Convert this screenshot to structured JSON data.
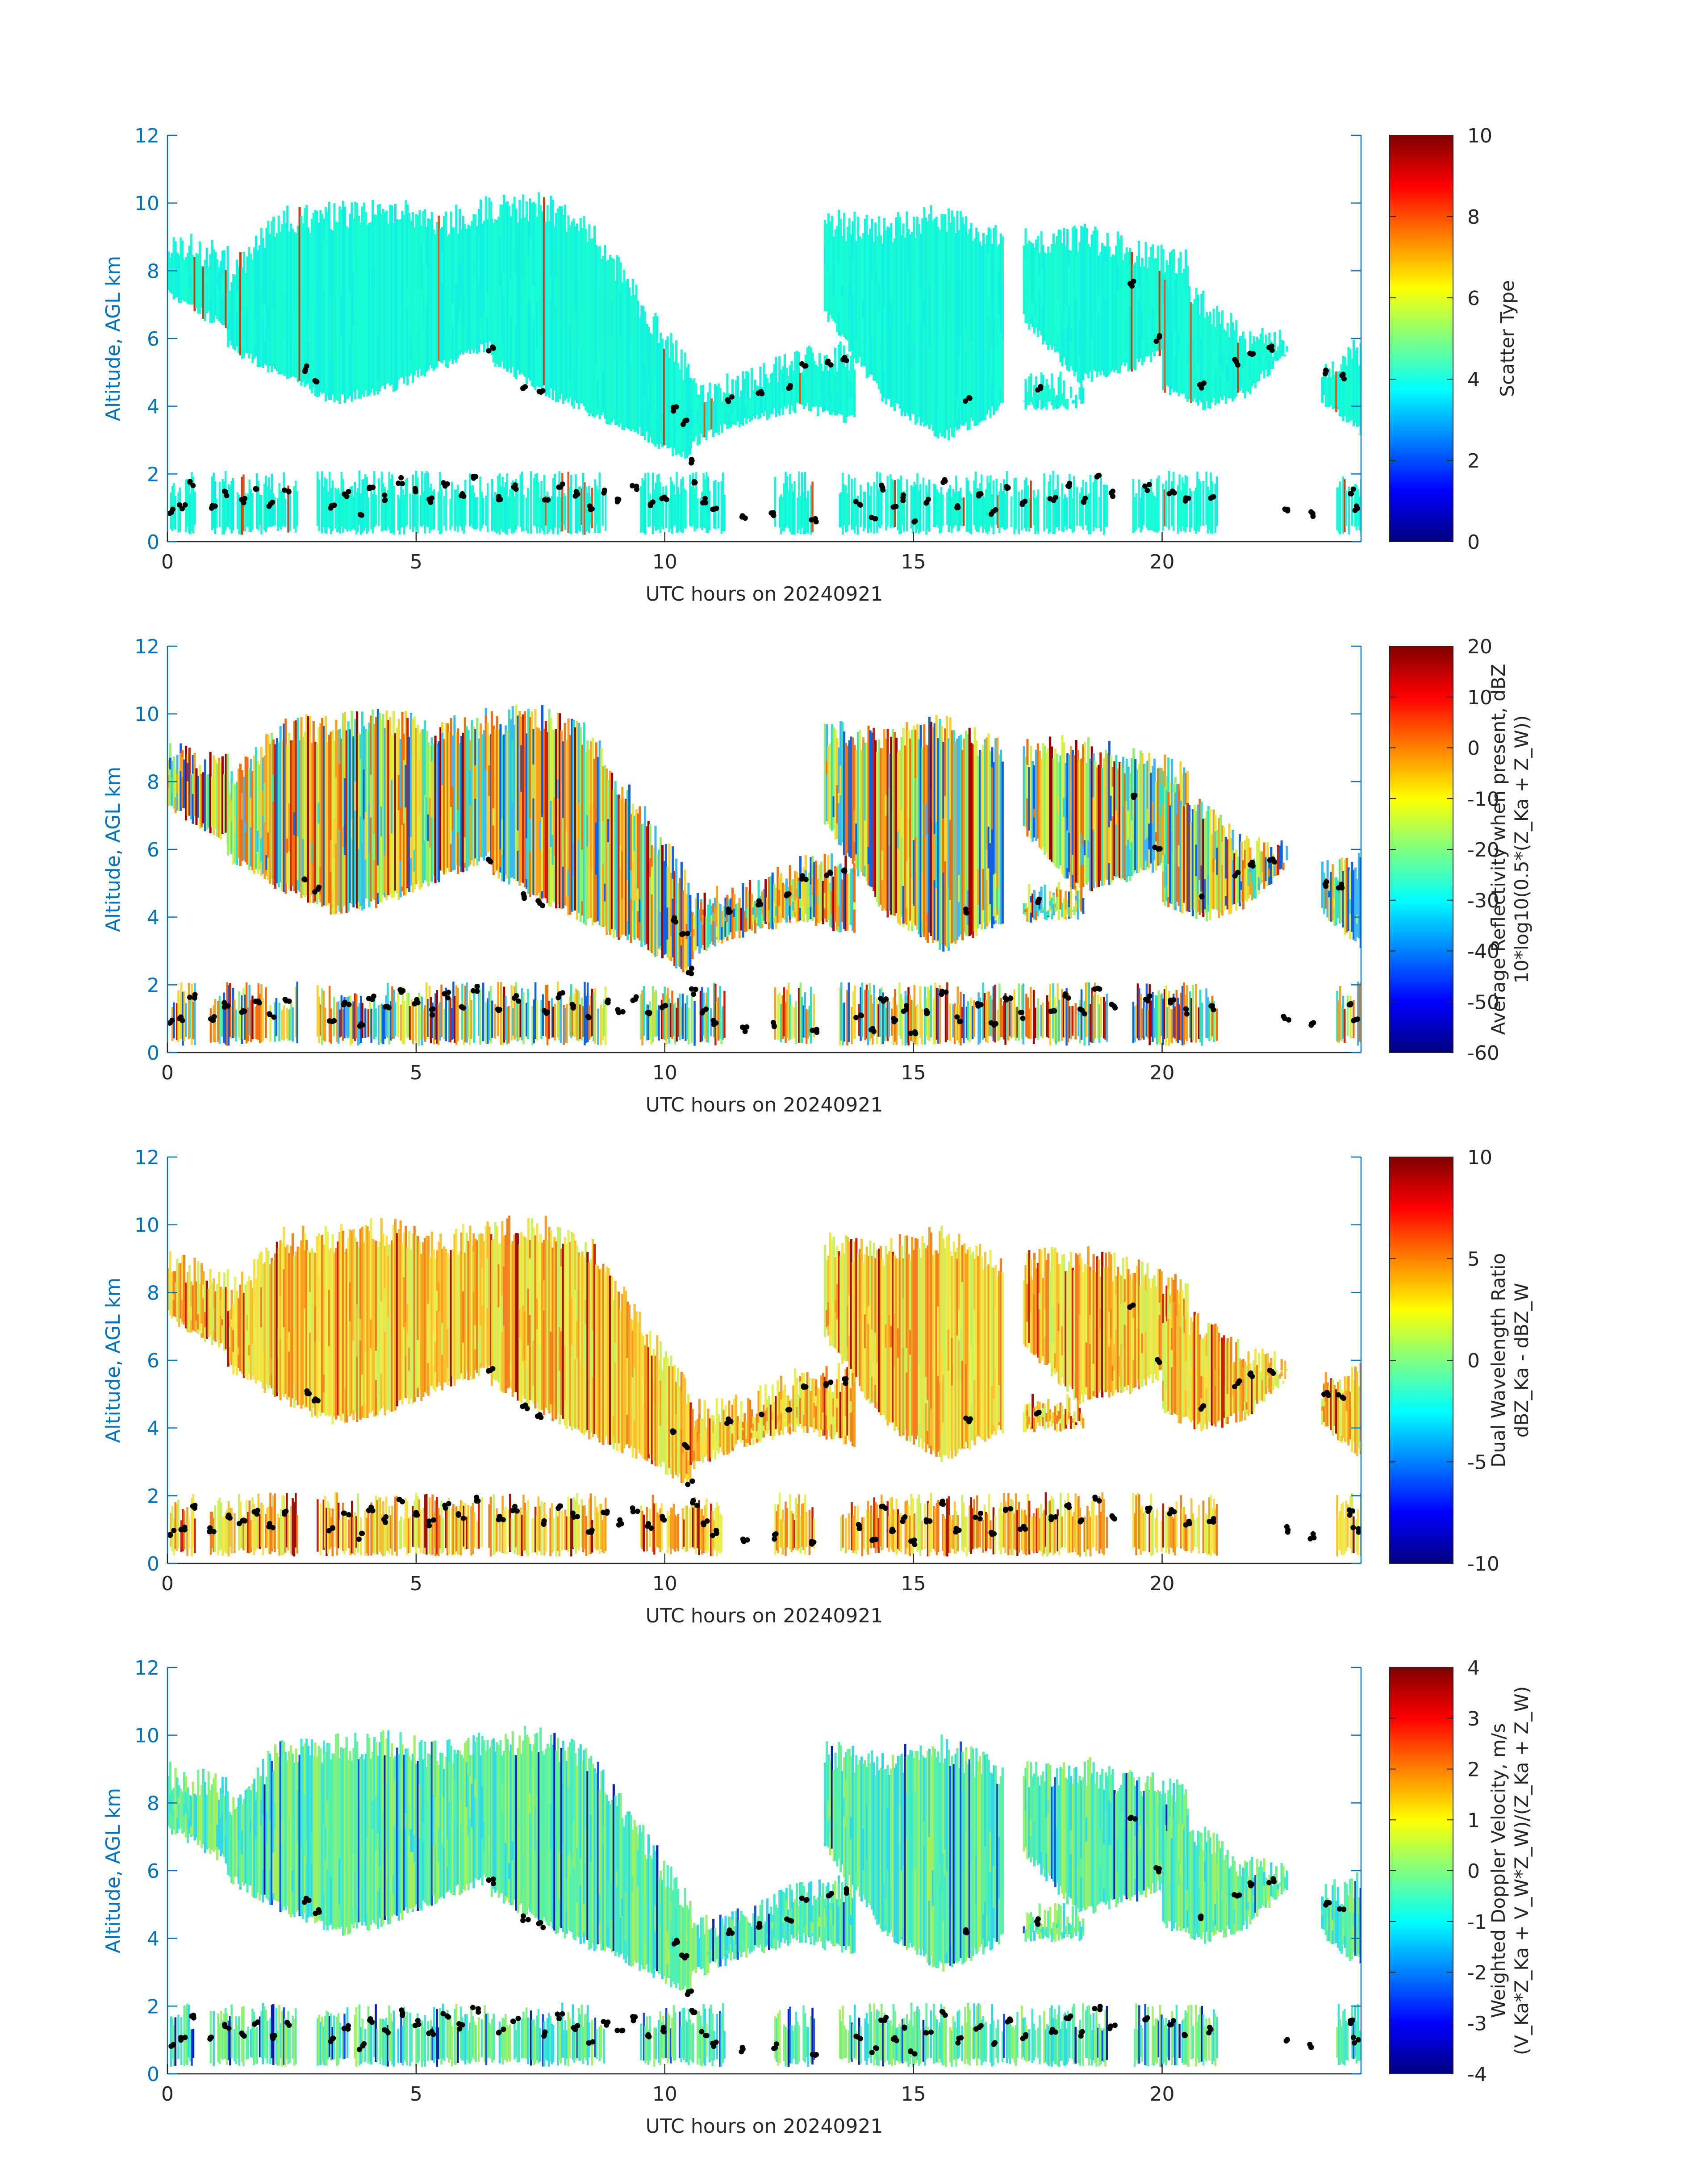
{
  "figure": {
    "xlabel": "UTC hours on 20240921",
    "ylabel": "Altitude, AGL km",
    "xticks": [
      "0",
      "5",
      "10",
      "15",
      "20"
    ],
    "yticks": [
      "0",
      "2",
      "4",
      "6",
      "8",
      "10",
      "12"
    ]
  },
  "chart_data": [
    {
      "type": "heatmap",
      "title": "",
      "xlabel": "UTC hours on 20240921",
      "ylabel": "Altitude, AGL km",
      "xlim": [
        0,
        24
      ],
      "ylim": [
        0,
        12
      ],
      "colormap": "jet",
      "colorbar": {
        "label": [
          "Scatter Type"
        ],
        "lim": [
          0,
          10
        ],
        "ticks": [
          "0",
          "2",
          "4",
          "6",
          "8",
          "10"
        ]
      },
      "dominant_value": 4,
      "palette": [
        "#16fdd8",
        "#19f8d0",
        "#12f0e0"
      ],
      "accent_palette": [
        "#e05a20",
        "#c84010"
      ],
      "accent_fraction": 0.02
    },
    {
      "type": "heatmap",
      "title": "",
      "xlabel": "UTC hours on 20240921",
      "ylabel": "Altitude, AGL km",
      "xlim": [
        0,
        24
      ],
      "ylim": [
        0,
        12
      ],
      "colormap": "jet",
      "colorbar": {
        "label": [
          "Average Reflectivity when present, dBZ",
          "10*log10(0.5*(Z_Ka + Z_W))"
        ],
        "lim": [
          -60,
          20
        ],
        "ticks": [
          "-60",
          "-50",
          "-40",
          "-30",
          "-20",
          "-10",
          "0",
          "10",
          "20"
        ]
      },
      "palette": [
        "#30e0c0",
        "#8ff070",
        "#d8f040",
        "#f8d030",
        "#f8a020",
        "#f07010",
        "#40b8f0",
        "#1060e0"
      ],
      "accent_palette": [
        "#d02000",
        "#a00000"
      ],
      "accent_fraction": 0.08
    },
    {
      "type": "heatmap",
      "title": "",
      "xlabel": "UTC hours on 20240921",
      "ylabel": "Altitude, AGL km",
      "xlim": [
        0,
        24
      ],
      "ylim": [
        0,
        12
      ],
      "colormap": "jet",
      "colorbar": {
        "label": [
          "Dual Wavelength Ratio",
          "dBZ_Ka - dBZ_W"
        ],
        "lim": [
          -10,
          10
        ],
        "ticks": [
          "-10",
          "-5",
          "0",
          "5",
          "10"
        ]
      },
      "palette": [
        "#f8e040",
        "#f8c030",
        "#f8a020",
        "#e8f050",
        "#f08020",
        "#c8f060"
      ],
      "accent_palette": [
        "#d02000",
        "#a01000"
      ],
      "accent_fraction": 0.08
    },
    {
      "type": "heatmap",
      "title": "",
      "xlabel": "UTC hours on 20240921",
      "ylabel": "Altitude, AGL km",
      "xlim": [
        0,
        24
      ],
      "ylim": [
        0,
        12
      ],
      "colormap": "jet",
      "colorbar": {
        "label": [
          "Weighted Doppler Velocity, m/s",
          "(V_Ka*Z_Ka + V_W*Z_W)/(Z_Ka + Z_W)"
        ],
        "lim": [
          -4,
          4
        ],
        "ticks": [
          "-4",
          "-3",
          "-2",
          "-1",
          "0",
          "1",
          "2",
          "3",
          "4"
        ]
      },
      "palette": [
        "#50f0b0",
        "#40e8d0",
        "#80f080",
        "#30d8e8",
        "#a0f060",
        "#60f0a0"
      ],
      "accent_palette": [
        "#1850e8",
        "#0a20b0"
      ],
      "accent_fraction": 0.06
    }
  ],
  "cloud_regions": {
    "upper": [
      {
        "x0": 0.0,
        "x1": 1.2,
        "bottom": [
          7.3,
          6.3
        ],
        "top": [
          8.8,
          8.4
        ]
      },
      {
        "x0": 1.2,
        "x1": 6.5,
        "bottom": [
          5.8,
          4.9,
          4.2,
          4.5,
          5.2,
          5.8
        ],
        "top": [
          7.8,
          9.5,
          9.6,
          9.8,
          9.4,
          9.8
        ]
      },
      {
        "x0": 6.5,
        "x1": 10.5,
        "bottom": [
          5.4,
          4.5,
          3.8,
          3.2,
          2.4
        ],
        "top": [
          9.8,
          9.9,
          9.2,
          7.0,
          4.9
        ]
      },
      {
        "x0": 10.5,
        "x1": 13.8,
        "bottom": [
          2.9,
          3.6,
          4.0,
          3.6
        ],
        "top": [
          4.4,
          4.6,
          5.4,
          5.5
        ]
      },
      {
        "x0": 13.2,
        "x1": 16.8,
        "bottom": [
          6.8,
          4.2,
          3.1,
          4.0
        ],
        "top": [
          9.4,
          9.2,
          9.6,
          8.8
        ]
      },
      {
        "x0": 17.2,
        "x1": 18.4,
        "bottom": [
          4.0,
          4.1
        ],
        "top": [
          4.6,
          4.6
        ]
      },
      {
        "x0": 17.2,
        "x1": 20.5,
        "bottom": [
          6.6,
          4.8,
          5.2,
          6.0
        ],
        "top": [
          8.8,
          9.0,
          8.6,
          8.2
        ]
      },
      {
        "x0": 20.0,
        "x1": 22.5,
        "bottom": [
          4.5,
          4.0,
          4.4,
          5.6
        ],
        "top": [
          7.5,
          7.0,
          6.0,
          5.8
        ]
      },
      {
        "x0": 23.2,
        "x1": 24.0,
        "bottom": [
          4.2,
          3.2
        ],
        "top": [
          5.2,
          5.6
        ]
      }
    ],
    "lower_segments": [
      [
        0.05,
        0.55
      ],
      [
        0.85,
        2.6
      ],
      [
        3.0,
        8.8
      ],
      [
        9.5,
        11.2
      ],
      [
        12.2,
        13.0
      ],
      [
        13.5,
        18.9
      ],
      [
        19.4,
        21.1
      ],
      [
        23.5,
        24.0
      ]
    ],
    "lower_top_km": 2.1,
    "cloud_base_points": [
      [
        0.1,
        0.9
      ],
      [
        0.3,
        1.0
      ],
      [
        0.5,
        1.7
      ],
      [
        0.9,
        1.0
      ],
      [
        1.2,
        1.4
      ],
      [
        1.5,
        1.2
      ],
      [
        1.8,
        1.5
      ],
      [
        2.1,
        1.1
      ],
      [
        2.4,
        1.5
      ],
      [
        2.8,
        5.1
      ],
      [
        3.0,
        4.8
      ],
      [
        3.3,
        1.0
      ],
      [
        3.6,
        1.4
      ],
      [
        3.9,
        0.8
      ],
      [
        4.1,
        1.6
      ],
      [
        4.4,
        1.3
      ],
      [
        4.7,
        1.8
      ],
      [
        5.0,
        1.5
      ],
      [
        5.3,
        1.2
      ],
      [
        5.6,
        1.7
      ],
      [
        5.9,
        1.4
      ],
      [
        6.2,
        1.9
      ],
      [
        6.5,
        5.7
      ],
      [
        6.7,
        1.3
      ],
      [
        7.0,
        1.6
      ],
      [
        7.2,
        4.6
      ],
      [
        7.5,
        4.4
      ],
      [
        7.6,
        1.2
      ],
      [
        7.9,
        1.7
      ],
      [
        8.2,
        1.4
      ],
      [
        8.5,
        1.0
      ],
      [
        8.8,
        1.5
      ],
      [
        9.1,
        1.2
      ],
      [
        9.4,
        1.6
      ],
      [
        9.7,
        1.1
      ],
      [
        10.0,
        1.3
      ],
      [
        10.2,
        3.9
      ],
      [
        10.4,
        3.5
      ],
      [
        10.5,
        2.4
      ],
      [
        10.6,
        1.8
      ],
      [
        10.8,
        1.2
      ],
      [
        11.0,
        0.9
      ],
      [
        11.3,
        4.2
      ],
      [
        11.6,
        0.7
      ],
      [
        11.9,
        4.4
      ],
      [
        12.2,
        0.8
      ],
      [
        12.5,
        4.6
      ],
      [
        12.8,
        5.2
      ],
      [
        13.0,
        0.6
      ],
      [
        13.3,
        5.3
      ],
      [
        13.6,
        5.4
      ],
      [
        13.9,
        1.1
      ],
      [
        14.2,
        0.7
      ],
      [
        14.4,
        1.6
      ],
      [
        14.6,
        1.0
      ],
      [
        14.8,
        1.3
      ],
      [
        15.0,
        0.6
      ],
      [
        15.3,
        1.2
      ],
      [
        15.6,
        1.8
      ],
      [
        15.9,
        1.0
      ],
      [
        16.1,
        4.2
      ],
      [
        16.3,
        1.4
      ],
      [
        16.6,
        0.9
      ],
      [
        16.9,
        1.6
      ],
      [
        17.2,
        1.1
      ],
      [
        17.5,
        4.5
      ],
      [
        17.8,
        1.3
      ],
      [
        18.1,
        1.7
      ],
      [
        18.4,
        1.2
      ],
      [
        18.7,
        1.9
      ],
      [
        19.0,
        1.4
      ],
      [
        19.4,
        7.6
      ],
      [
        19.7,
        1.6
      ],
      [
        19.9,
        6.0
      ],
      [
        20.2,
        1.5
      ],
      [
        20.5,
        1.2
      ],
      [
        20.8,
        4.6
      ],
      [
        21.0,
        1.3
      ],
      [
        21.5,
        5.3
      ],
      [
        21.8,
        5.6
      ],
      [
        22.2,
        5.7
      ],
      [
        22.5,
        1.0
      ],
      [
        23.0,
        0.8
      ],
      [
        23.3,
        5.0
      ],
      [
        23.6,
        4.9
      ],
      [
        23.8,
        1.5
      ],
      [
        23.9,
        1.0
      ]
    ]
  }
}
